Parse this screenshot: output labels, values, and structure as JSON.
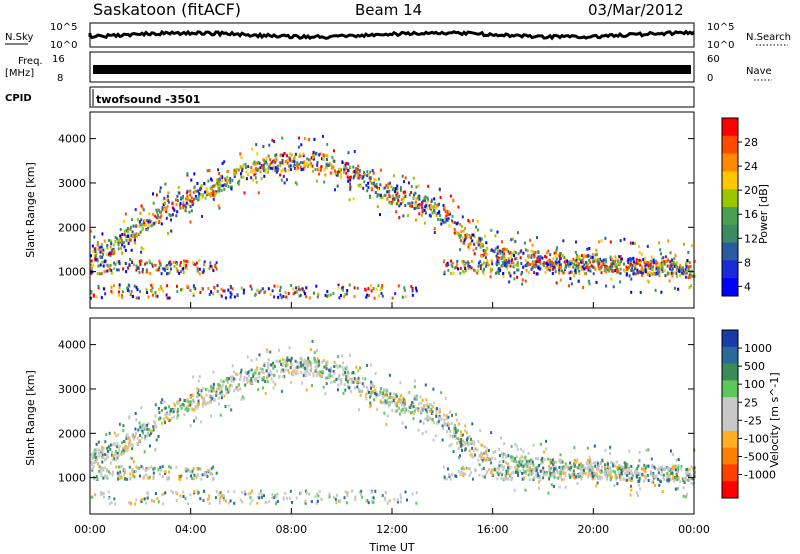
{
  "header": {
    "title": "Saskatoon (fitACF)",
    "beam": "Beam 14",
    "date": "03/Mar/2012"
  },
  "strips": {
    "nsky_label": "N.Sky",
    "nsky_top": "10^5",
    "nsky_bottom": "10^0",
    "nsearch_label": "N.Search",
    "nsearch_top": "10^5",
    "nsearch_bottom": "10^0",
    "freq_label": "Freq.",
    "freq_unit": "[MHz]",
    "freq_top": "16",
    "freq_bottom": "8",
    "nave_label": "Nave",
    "nave_top": "60",
    "nave_bottom": "0",
    "cpid_label": "CPID",
    "cpid_value": "twofsound -3501"
  },
  "chart_data": [
    {
      "type": "heatmap",
      "quantity": "Power",
      "ylabel": "Slant Range [km]",
      "colorbar_label": "Power [dB]",
      "ylim": [
        180,
        4600
      ],
      "y_ticks": [
        1000,
        2000,
        3000,
        4000
      ],
      "x_ticks": [
        "00:00",
        "04:00",
        "08:00",
        "12:00",
        "16:00",
        "20:00",
        "00:00"
      ],
      "colorbar_ticks": [
        "28",
        "24",
        "20",
        "16",
        "12",
        "8",
        "4"
      ],
      "colorbar_colors": [
        "#ff0000",
        "#ff4a00",
        "#ff8a00",
        "#ffc800",
        "#9ac800",
        "#4aa050",
        "#3c8a64",
        "#2a5aa0",
        "#1a2ad8",
        "#0000ff"
      ]
    },
    {
      "type": "heatmap",
      "quantity": "Velocity",
      "ylabel": "Slant Range [km]",
      "xlabel": "Time UT",
      "colorbar_label": "Velocity [m s^-1]",
      "ylim": [
        180,
        4600
      ],
      "y_ticks": [
        1000,
        2000,
        3000,
        4000
      ],
      "x_ticks": [
        "00:00",
        "04:00",
        "08:00",
        "12:00",
        "16:00",
        "20:00",
        "00:00"
      ],
      "colorbar_ticks": [
        "1000",
        "500",
        "100",
        "25",
        "-25",
        "-100",
        "-500",
        "-1000"
      ],
      "colorbar_colors": [
        "#1a3aa8",
        "#2a6a9a",
        "#3a8a5a",
        "#5ac85a",
        "#c8c8c8",
        "#c8c8c8",
        "#ffb020",
        "#ff8000",
        "#ff4000",
        "#ff0000"
      ]
    }
  ]
}
